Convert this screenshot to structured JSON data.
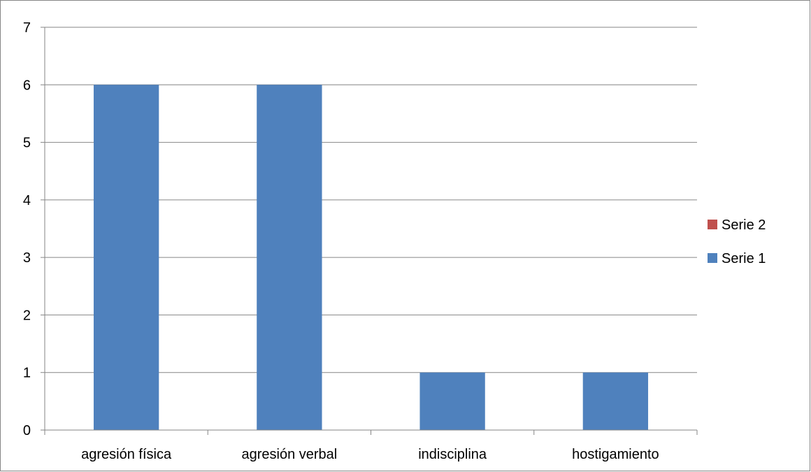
{
  "chart_data": {
    "type": "bar",
    "title": "",
    "xlabel": "",
    "ylabel": "",
    "categories": [
      "agresión física",
      "agresión verbal",
      "indisciplina",
      "hostigamiento"
    ],
    "series": [
      {
        "name": "Serie 1",
        "values": [
          6,
          6,
          1,
          1
        ],
        "color": "#4F81BD"
      },
      {
        "name": "Serie 2",
        "values": [
          0,
          0,
          0,
          0
        ],
        "color": "#C0504D"
      }
    ],
    "ylim": [
      0,
      7
    ],
    "yticks": [
      0,
      1,
      2,
      3,
      4,
      5,
      6,
      7
    ],
    "grid": true,
    "legend_position": "right",
    "legend_order": [
      "Serie 2",
      "Serie 1"
    ]
  }
}
